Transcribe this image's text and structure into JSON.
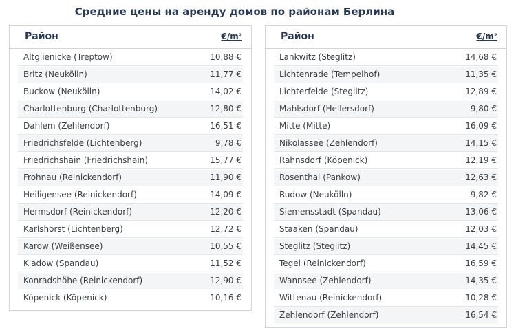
{
  "title": "Средние цены на аренду домов по районам Берлина",
  "table_left": {
    "header_district": "Район",
    "header_price": "€/m²",
    "rows": [
      {
        "district": "Altglienicke (Treptow)",
        "price": "10,88 €"
      },
      {
        "district": "Britz (Neukölln)",
        "price": "11,77 €"
      },
      {
        "district": "Buckow (Neukölln)",
        "price": "14,02 €"
      },
      {
        "district": "Charlottenburg (Charlottenburg)",
        "price": "12,80 €"
      },
      {
        "district": "Dahlem (Zehlendorf)",
        "price": "16,51 €"
      },
      {
        "district": "Friedrichsfelde (Lichtenberg)",
        "price": "9,78 €"
      },
      {
        "district": "Friedrichshain (Friedrichshain)",
        "price": "15,77 €"
      },
      {
        "district": "Frohnau (Reinickendorf)",
        "price": "11,90 €"
      },
      {
        "district": "Heiligensee (Reinickendorf)",
        "price": "14,09 €"
      },
      {
        "district": "Hermsdorf (Reinickendorf)",
        "price": "12,20 €"
      },
      {
        "district": "Karlshorst (Lichtenberg)",
        "price": "12,72 €"
      },
      {
        "district": "Karow (Weißensee)",
        "price": "10,55 €"
      },
      {
        "district": "Kladow (Spandau)",
        "price": "11,52 €"
      },
      {
        "district": "Konradshöhe (Reinickendorf)",
        "price": "12,90 €"
      },
      {
        "district": "Köpenick (Köpenick)",
        "price": "10,16 €"
      }
    ]
  },
  "table_right": {
    "header_district": "Район",
    "header_price": "€/m²",
    "rows": [
      {
        "district": "Lankwitz (Steglitz)",
        "price": "14,68 €"
      },
      {
        "district": "Lichtenrade (Tempelhof)",
        "price": "11,35 €"
      },
      {
        "district": "Lichterfelde (Steglitz)",
        "price": "12,89 €"
      },
      {
        "district": "Mahlsdorf (Hellersdorf)",
        "price": "9,80 €"
      },
      {
        "district": "Mitte (Mitte)",
        "price": "16,09 €"
      },
      {
        "district": "Nikolassee (Zehlendorf)",
        "price": "14,15 €"
      },
      {
        "district": "Rahnsdorf (Köpenick)",
        "price": "12,19 €"
      },
      {
        "district": "Rosenthal (Pankow)",
        "price": "12,63 €"
      },
      {
        "district": "Rudow (Neukölln)",
        "price": "9,82 €"
      },
      {
        "district": "Siemensstadt (Spandau)",
        "price": "13,06 €"
      },
      {
        "district": "Staaken (Spandau)",
        "price": "12,03 €"
      },
      {
        "district": "Steglitz (Steglitz)",
        "price": "14,45 €"
      },
      {
        "district": "Tegel (Reinickendorf)",
        "price": "16,59 €"
      },
      {
        "district": "Wannsee (Zehlendorf)",
        "price": "14,35 €"
      },
      {
        "district": "Wittenau (Reinickendorf)",
        "price": "10,28 €"
      },
      {
        "district": "Zehlendorf (Zehlendorf)",
        "price": "16,54 €"
      }
    ]
  }
}
